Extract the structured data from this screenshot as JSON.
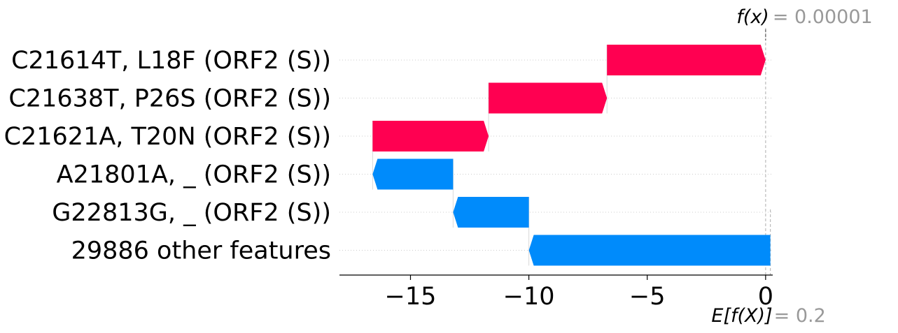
{
  "chart_data": {
    "type": "waterfall",
    "base_value": 0.2,
    "output_value": 1e-05,
    "fx_label": "f(x)",
    "fx_value_text": "= 0.00001",
    "ex_label": "E[f(X)]",
    "ex_value_text": "= 0.2",
    "features": [
      {
        "label": "C21614T, L18F (ORF2 (S))",
        "start": -6.7,
        "end": 0.0,
        "sign": "positive"
      },
      {
        "label": "C21638T, P26S (ORF2 (S))",
        "start": -11.7,
        "end": -6.7,
        "sign": "positive"
      },
      {
        "label": "C21621A, T20N (ORF2 (S))",
        "start": -16.6,
        "end": -11.7,
        "sign": "positive"
      },
      {
        "label": "A21801A, _ (ORF2 (S))",
        "start": -13.2,
        "end": -16.6,
        "sign": "negative"
      },
      {
        "label": "G22813G, _ (ORF2 (S))",
        "start": -10.0,
        "end": -13.2,
        "sign": "negative"
      },
      {
        "label": "29886 other features",
        "start": 0.2,
        "end": -10.0,
        "sign": "negative"
      }
    ],
    "xlim": [
      -18.0,
      0.3
    ],
    "xticks": [
      -15,
      -10,
      -5,
      0
    ],
    "xtick_labels": [
      "−15",
      "−10",
      "−5",
      "0"
    ],
    "colors": {
      "positive": "#ff0051",
      "negative": "#008bfb",
      "axis": "#000000",
      "guide": "#bbbbbb",
      "gray_text": "#999999"
    }
  }
}
